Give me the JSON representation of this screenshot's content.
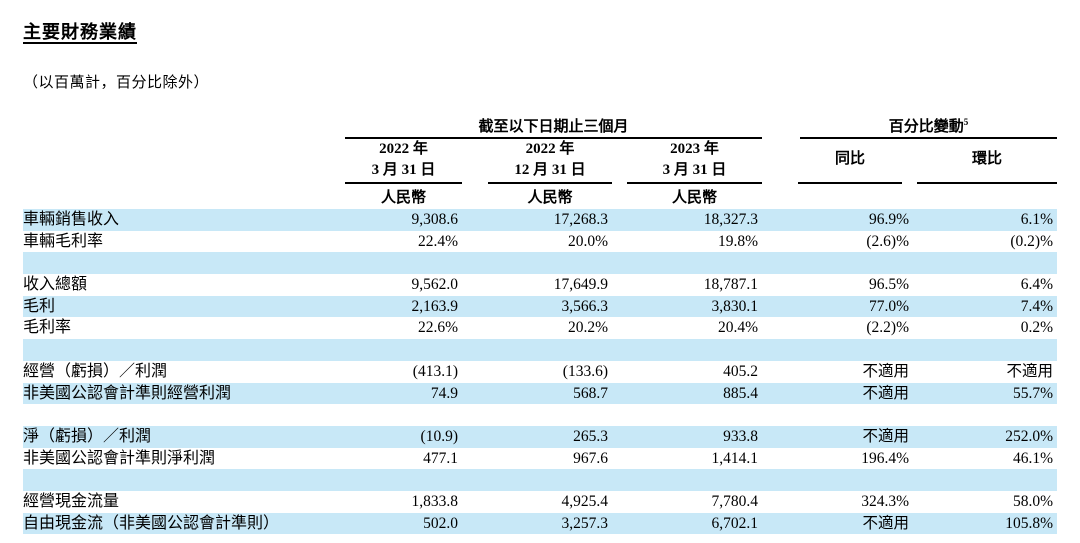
{
  "page": {
    "title": "主要財務業績",
    "subtitle": "（以百萬計，百分比除外）"
  },
  "colors": {
    "row_highlight": "#c8e8f7",
    "text": "#000000"
  },
  "table": {
    "group_headers": {
      "period": "截至以下日期止三個月",
      "change": "百分比變動",
      "change_superscript": "5"
    },
    "columns": [
      {
        "line1": "2022 年",
        "line2": "3 月 31 日",
        "currency": "人民幣"
      },
      {
        "line1": "2022 年",
        "line2": "12 月 31 日",
        "currency": "人民幣"
      },
      {
        "line1": "2023 年",
        "line2": "3 月 31 日",
        "currency": "人民幣"
      },
      {
        "label": "同比"
      },
      {
        "label": "環比"
      }
    ],
    "rows": [
      {
        "label": "車輛銷售收入",
        "values": [
          "9,308.6",
          "17,268.3",
          "18,327.3",
          "96.9%",
          "6.1%"
        ]
      },
      {
        "label": "車輛毛利率",
        "values": [
          "22.4%",
          "20.0%",
          "19.8%",
          "(2.6)%",
          "(0.2)%"
        ]
      },
      {
        "label": "",
        "values": [
          "",
          "",
          "",
          "",
          ""
        ]
      },
      {
        "label": "收入總額",
        "values": [
          "9,562.0",
          "17,649.9",
          "18,787.1",
          "96.5%",
          "6.4%"
        ]
      },
      {
        "label": "毛利",
        "values": [
          "2,163.9",
          "3,566.3",
          "3,830.1",
          "77.0%",
          "7.4%"
        ]
      },
      {
        "label": "毛利率",
        "values": [
          "22.6%",
          "20.2%",
          "20.4%",
          "(2.2)%",
          "0.2%"
        ]
      },
      {
        "label": "",
        "values": [
          "",
          "",
          "",
          "",
          ""
        ]
      },
      {
        "label": "經營（虧損）／利潤",
        "values": [
          "(413.1)",
          "(133.6)",
          "405.2",
          "不適用",
          "不適用"
        ]
      },
      {
        "label": "非美國公認會計準則經營利潤",
        "values": [
          "74.9",
          "568.7",
          "885.4",
          "不適用",
          "55.7%"
        ]
      },
      {
        "label": "",
        "values": [
          "",
          "",
          "",
          "",
          ""
        ]
      },
      {
        "label": "淨（虧損）／利潤",
        "values": [
          "(10.9)",
          "265.3",
          "933.8",
          "不適用",
          "252.0%"
        ]
      },
      {
        "label": "非美國公認會計準則淨利潤",
        "values": [
          "477.1",
          "967.6",
          "1,414.1",
          "196.4%",
          "46.1%"
        ]
      },
      {
        "label": "",
        "values": [
          "",
          "",
          "",
          "",
          ""
        ]
      },
      {
        "label": "經營現金流量",
        "values": [
          "1,833.8",
          "4,925.4",
          "7,780.4",
          "324.3%",
          "58.0%"
        ]
      },
      {
        "label": "自由現金流（非美國公認會計準則）",
        "values": [
          "502.0",
          "3,257.3",
          "6,702.1",
          "不適用",
          "105.8%"
        ]
      }
    ]
  }
}
